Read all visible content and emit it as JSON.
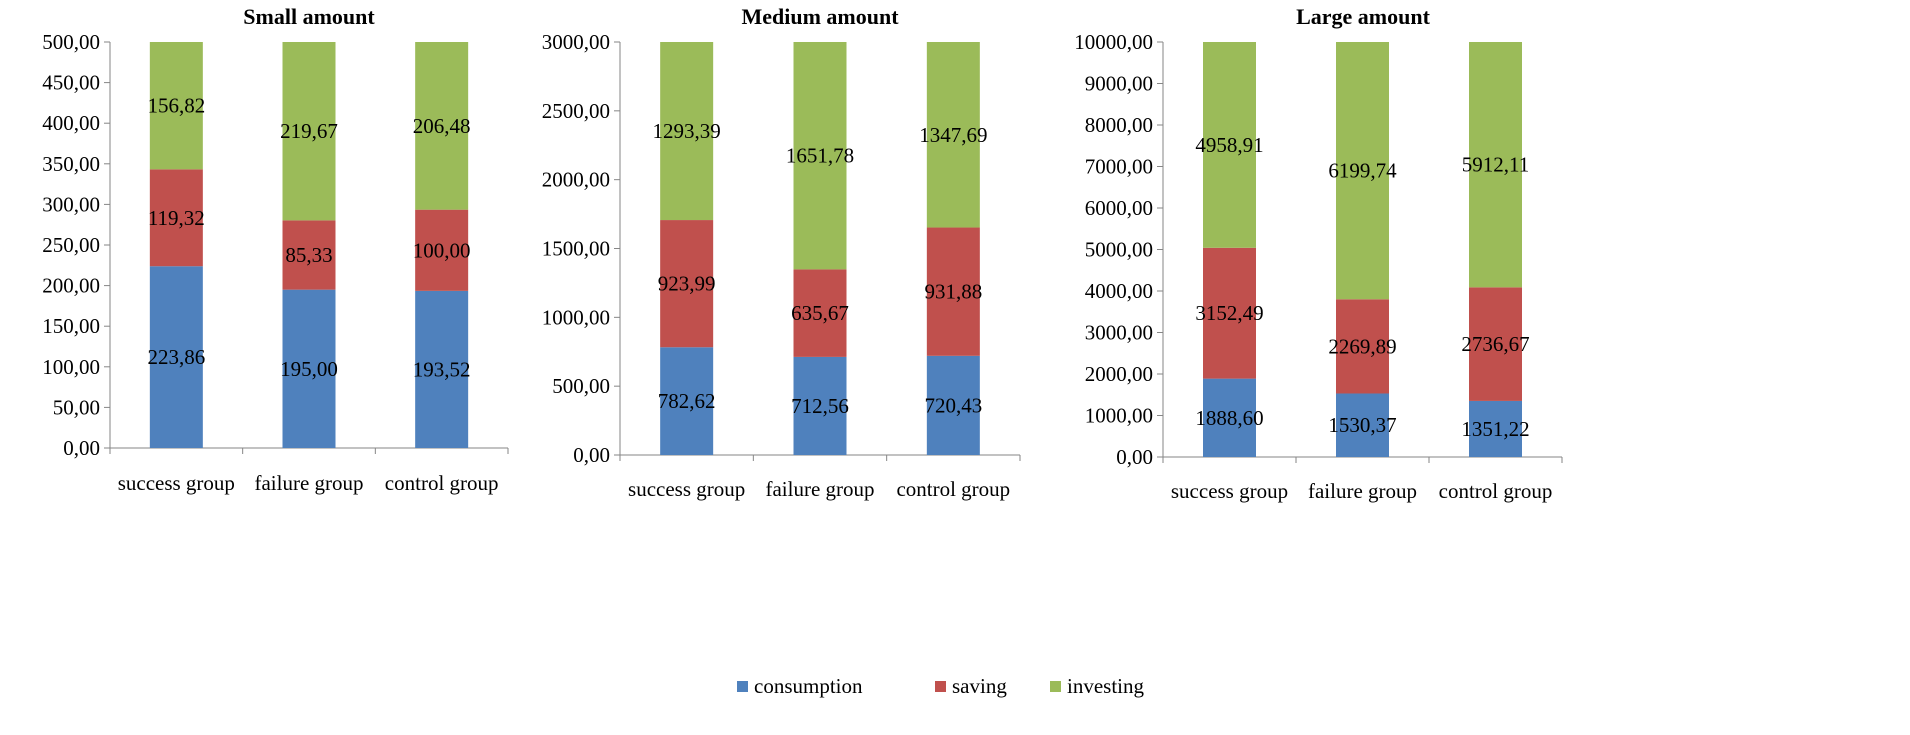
{
  "chart_data": [
    {
      "type": "bar",
      "stacked": true,
      "title": "Small amount",
      "categories": [
        "success group",
        "failure group",
        "control group"
      ],
      "ylim": [
        0,
        500
      ],
      "yticks": [
        0,
        50,
        100,
        150,
        200,
        250,
        300,
        350,
        400,
        450,
        500
      ],
      "ytick_labels": [
        "0,00",
        "50,00",
        "100,00",
        "150,00",
        "200,00",
        "250,00",
        "300,00",
        "350,00",
        "400,00",
        "450,00",
        "500,00"
      ],
      "series": [
        {
          "name": "consumption",
          "values": [
            223.86,
            195.0,
            193.52
          ],
          "labels": [
            "223,86",
            "195,00",
            "193,52"
          ]
        },
        {
          "name": "saving",
          "values": [
            119.32,
            85.33,
            100.0
          ],
          "labels": [
            "119,32",
            "85,33",
            "100,00"
          ]
        },
        {
          "name": "investing",
          "values": [
            156.82,
            219.67,
            206.48
          ],
          "labels": [
            "156,82",
            "219,67",
            "206,48"
          ]
        }
      ]
    },
    {
      "type": "bar",
      "stacked": true,
      "title": "Medium amount",
      "categories": [
        "success group",
        "failure group",
        "control group"
      ],
      "ylim": [
        0,
        3000
      ],
      "yticks": [
        0,
        500,
        1000,
        1500,
        2000,
        2500,
        3000
      ],
      "ytick_labels": [
        "0,00",
        "500,00",
        "1000,00",
        "1500,00",
        "2000,00",
        "2500,00",
        "3000,00"
      ],
      "series": [
        {
          "name": "consumption",
          "values": [
            782.62,
            712.56,
            720.43
          ],
          "labels": [
            "782,62",
            "712,56",
            "720,43"
          ]
        },
        {
          "name": "saving",
          "values": [
            923.99,
            635.67,
            931.88
          ],
          "labels": [
            "923,99",
            "635,67",
            "931,88"
          ]
        },
        {
          "name": "investing",
          "values": [
            1293.39,
            1651.78,
            1347.69
          ],
          "labels": [
            "1293,39",
            "1651,78",
            "1347,69"
          ]
        }
      ]
    },
    {
      "type": "bar",
      "stacked": true,
      "title": "Large amount",
      "categories": [
        "success group",
        "failure group",
        "control group"
      ],
      "ylim": [
        0,
        10000
      ],
      "yticks": [
        0,
        1000,
        2000,
        3000,
        4000,
        5000,
        6000,
        7000,
        8000,
        9000,
        10000
      ],
      "ytick_labels": [
        "0,00",
        "1000,00",
        "2000,00",
        "3000,00",
        "4000,00",
        "5000,00",
        "6000,00",
        "7000,00",
        "8000,00",
        "9000,00",
        "10000,00"
      ],
      "series": [
        {
          "name": "consumption",
          "values": [
            1888.6,
            1530.37,
            1351.22
          ],
          "labels": [
            "1888,60",
            "1530,37",
            "1351,22"
          ]
        },
        {
          "name": "saving",
          "values": [
            3152.49,
            2269.89,
            2736.67
          ],
          "labels": [
            "3152,49",
            "2269,89",
            "2736,67"
          ]
        },
        {
          "name": "investing",
          "values": [
            4958.91,
            6199.74,
            5912.11
          ],
          "labels": [
            "4958,91",
            "6199,74",
            "5912,11"
          ]
        }
      ]
    }
  ],
  "legend": {
    "position": "bottom",
    "items": [
      {
        "label": "consumption",
        "color": "#4f81bd"
      },
      {
        "label": "saving",
        "color": "#c0504d"
      },
      {
        "label": "investing",
        "color": "#9bbb59"
      }
    ]
  },
  "colors": {
    "consumption": "#4f81bd",
    "saving": "#c0504d",
    "investing": "#9bbb59",
    "axis": "#868686"
  }
}
